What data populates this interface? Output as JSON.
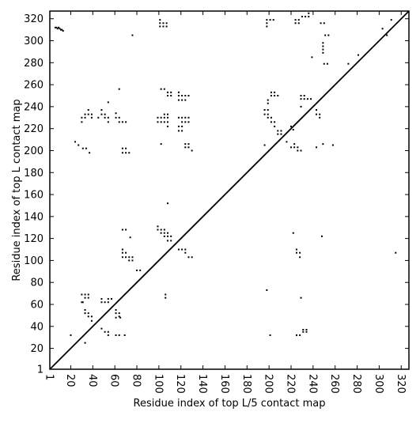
{
  "chart_data": {
    "type": "scatter",
    "title": "",
    "xlabel": "Residue index of top L/5 contact map",
    "ylabel": "Residue index of top L contact map",
    "xlim": [
      1,
      327
    ],
    "ylim": [
      1,
      327
    ],
    "xticks": [
      1,
      20,
      40,
      60,
      80,
      100,
      120,
      140,
      160,
      180,
      200,
      220,
      240,
      260,
      280,
      300,
      320
    ],
    "yticks": [
      1,
      20,
      40,
      60,
      80,
      100,
      120,
      140,
      160,
      180,
      200,
      220,
      240,
      260,
      280,
      300,
      320
    ],
    "grid": false,
    "legend": "none",
    "marker_color": "#000000",
    "diagonal": {
      "from": [
        1,
        1
      ],
      "to": [
        327,
        327
      ]
    },
    "series": [
      {
        "points": [
          [
            6,
            312
          ],
          [
            7,
            312
          ],
          [
            8,
            311
          ],
          [
            9,
            312
          ],
          [
            10,
            311
          ],
          [
            11,
            310
          ],
          [
            12,
            310
          ],
          [
            13,
            309
          ],
          [
            101,
            319
          ],
          [
            101,
            316
          ],
          [
            101,
            313
          ],
          [
            104,
            316
          ],
          [
            104,
            313
          ],
          [
            107,
            316
          ],
          [
            107,
            313
          ],
          [
            198,
            319
          ],
          [
            198,
            316
          ],
          [
            198,
            313
          ],
          [
            201,
            319
          ],
          [
            204,
            319
          ],
          [
            224,
            319
          ],
          [
            224,
            316
          ],
          [
            227,
            316
          ],
          [
            227,
            319
          ],
          [
            230,
            322
          ],
          [
            233,
            322
          ],
          [
            236,
            322
          ],
          [
            236,
            325
          ],
          [
            247,
            316
          ],
          [
            250,
            316
          ],
          [
            251,
            305
          ],
          [
            254,
            305
          ],
          [
            239,
            285
          ],
          [
            249,
            298
          ],
          [
            249,
            295
          ],
          [
            249,
            292
          ],
          [
            249,
            289
          ],
          [
            250,
            279
          ],
          [
            253,
            279
          ],
          [
            272,
            279
          ],
          [
            281,
            287
          ],
          [
            303,
            311
          ],
          [
            307,
            305
          ],
          [
            311,
            319
          ],
          [
            76,
            305
          ],
          [
            36,
            237
          ],
          [
            36,
            233
          ],
          [
            33,
            233
          ],
          [
            33,
            230
          ],
          [
            30,
            230
          ],
          [
            30,
            226
          ],
          [
            39,
            233
          ],
          [
            39,
            230
          ],
          [
            48,
            237
          ],
          [
            48,
            233
          ],
          [
            51,
            233
          ],
          [
            51,
            230
          ],
          [
            54,
            230
          ],
          [
            54,
            226
          ],
          [
            54,
            244
          ],
          [
            45,
            230
          ],
          [
            61,
            234
          ],
          [
            61,
            230
          ],
          [
            64,
            230
          ],
          [
            64,
            226
          ],
          [
            67,
            226
          ],
          [
            70,
            226
          ],
          [
            64,
            256
          ],
          [
            99,
            230
          ],
          [
            99,
            226
          ],
          [
            102,
            230
          ],
          [
            102,
            226
          ],
          [
            105,
            226
          ],
          [
            105,
            230
          ],
          [
            108,
            230
          ],
          [
            108,
            226
          ],
          [
            108,
            233
          ],
          [
            105,
            233
          ],
          [
            108,
            222
          ],
          [
            102,
            256
          ],
          [
            105,
            256
          ],
          [
            108,
            253
          ],
          [
            108,
            250
          ],
          [
            111,
            253
          ],
          [
            111,
            250
          ],
          [
            118,
            253
          ],
          [
            118,
            250
          ],
          [
            118,
            246
          ],
          [
            121,
            250
          ],
          [
            121,
            246
          ],
          [
            124,
            250
          ],
          [
            124,
            246
          ],
          [
            127,
            250
          ],
          [
            118,
            230
          ],
          [
            121,
            230
          ],
          [
            121,
            226
          ],
          [
            124,
            230
          ],
          [
            124,
            226
          ],
          [
            127,
            226
          ],
          [
            127,
            230
          ],
          [
            121,
            222
          ],
          [
            118,
            222
          ],
          [
            118,
            218
          ],
          [
            121,
            218
          ],
          [
            124,
            206
          ],
          [
            124,
            203
          ],
          [
            127,
            206
          ],
          [
            127,
            203
          ],
          [
            130,
            200
          ],
          [
            102,
            206
          ],
          [
            196,
            237
          ],
          [
            199,
            237
          ],
          [
            199,
            233
          ],
          [
            196,
            233
          ],
          [
            199,
            230
          ],
          [
            202,
            230
          ],
          [
            202,
            226
          ],
          [
            205,
            226
          ],
          [
            205,
            222
          ],
          [
            208,
            218
          ],
          [
            208,
            215
          ],
          [
            211,
            215
          ],
          [
            211,
            218
          ],
          [
            202,
            250
          ],
          [
            202,
            253
          ],
          [
            205,
            253
          ],
          [
            205,
            250
          ],
          [
            208,
            250
          ],
          [
            199,
            246
          ],
          [
            199,
            243
          ],
          [
            220,
            222
          ],
          [
            216,
            208
          ],
          [
            220,
            203
          ],
          [
            223,
            203
          ],
          [
            223,
            206
          ],
          [
            226,
            203
          ],
          [
            226,
            200
          ],
          [
            229,
            200
          ],
          [
            229,
            250
          ],
          [
            229,
            247
          ],
          [
            232,
            250
          ],
          [
            232,
            247
          ],
          [
            235,
            247
          ],
          [
            238,
            247
          ],
          [
            229,
            240
          ],
          [
            243,
            237
          ],
          [
            243,
            233
          ],
          [
            246,
            233
          ],
          [
            246,
            230
          ],
          [
            249,
            206
          ],
          [
            243,
            203
          ],
          [
            258,
            205
          ],
          [
            196,
            205
          ],
          [
            222,
            219
          ],
          [
            37,
            198
          ],
          [
            31,
            202
          ],
          [
            34,
            202
          ],
          [
            67,
            198
          ],
          [
            70,
            198
          ],
          [
            73,
            198
          ],
          [
            67,
            202
          ],
          [
            70,
            202
          ],
          [
            24,
            208
          ],
          [
            27,
            205
          ],
          [
            67,
            128
          ],
          [
            70,
            128
          ],
          [
            74,
            121
          ],
          [
            67,
            110
          ],
          [
            67,
            107
          ],
          [
            67,
            103
          ],
          [
            70,
            107
          ],
          [
            70,
            103
          ],
          [
            73,
            103
          ],
          [
            73,
            100
          ],
          [
            76,
            100
          ],
          [
            76,
            103
          ],
          [
            80,
            91
          ],
          [
            83,
            91
          ],
          [
            99,
            131
          ],
          [
            99,
            128
          ],
          [
            102,
            128
          ],
          [
            102,
            125
          ],
          [
            105,
            125
          ],
          [
            105,
            128
          ],
          [
            105,
            122
          ],
          [
            108,
            122
          ],
          [
            108,
            125
          ],
          [
            108,
            118
          ],
          [
            111,
            118
          ],
          [
            111,
            122
          ],
          [
            118,
            110
          ],
          [
            121,
            110
          ],
          [
            124,
            110
          ],
          [
            124,
            107
          ],
          [
            127,
            103
          ],
          [
            130,
            103
          ],
          [
            106,
            69
          ],
          [
            106,
            66
          ],
          [
            30,
            69
          ],
          [
            33,
            69
          ],
          [
            33,
            66
          ],
          [
            36,
            69
          ],
          [
            36,
            66
          ],
          [
            30,
            62
          ],
          [
            33,
            55
          ],
          [
            33,
            52
          ],
          [
            36,
            52
          ],
          [
            36,
            49
          ],
          [
            39,
            49
          ],
          [
            39,
            45
          ],
          [
            48,
            65
          ],
          [
            48,
            62
          ],
          [
            51,
            62
          ],
          [
            54,
            62
          ],
          [
            54,
            65
          ],
          [
            57,
            65
          ],
          [
            48,
            38
          ],
          [
            51,
            35
          ],
          [
            54,
            35
          ],
          [
            54,
            32
          ],
          [
            61,
            55
          ],
          [
            61,
            52
          ],
          [
            64,
            52
          ],
          [
            64,
            49
          ],
          [
            61,
            48
          ],
          [
            65,
            48
          ],
          [
            61,
            32
          ],
          [
            64,
            32
          ],
          [
            69,
            32
          ],
          [
            33,
            25
          ],
          [
            20,
            32
          ],
          [
            31,
            62
          ],
          [
            108,
            152
          ],
          [
            198,
            73
          ],
          [
            201,
            32
          ],
          [
            225,
            110
          ],
          [
            225,
            107
          ],
          [
            228,
            107
          ],
          [
            228,
            103
          ],
          [
            225,
            32
          ],
          [
            228,
            32
          ],
          [
            231,
            35
          ],
          [
            231,
            37
          ],
          [
            234,
            37
          ],
          [
            234,
            35
          ],
          [
            229,
            66
          ],
          [
            222,
            125
          ],
          [
            248,
            122
          ],
          [
            315,
            107
          ]
        ]
      }
    ]
  }
}
